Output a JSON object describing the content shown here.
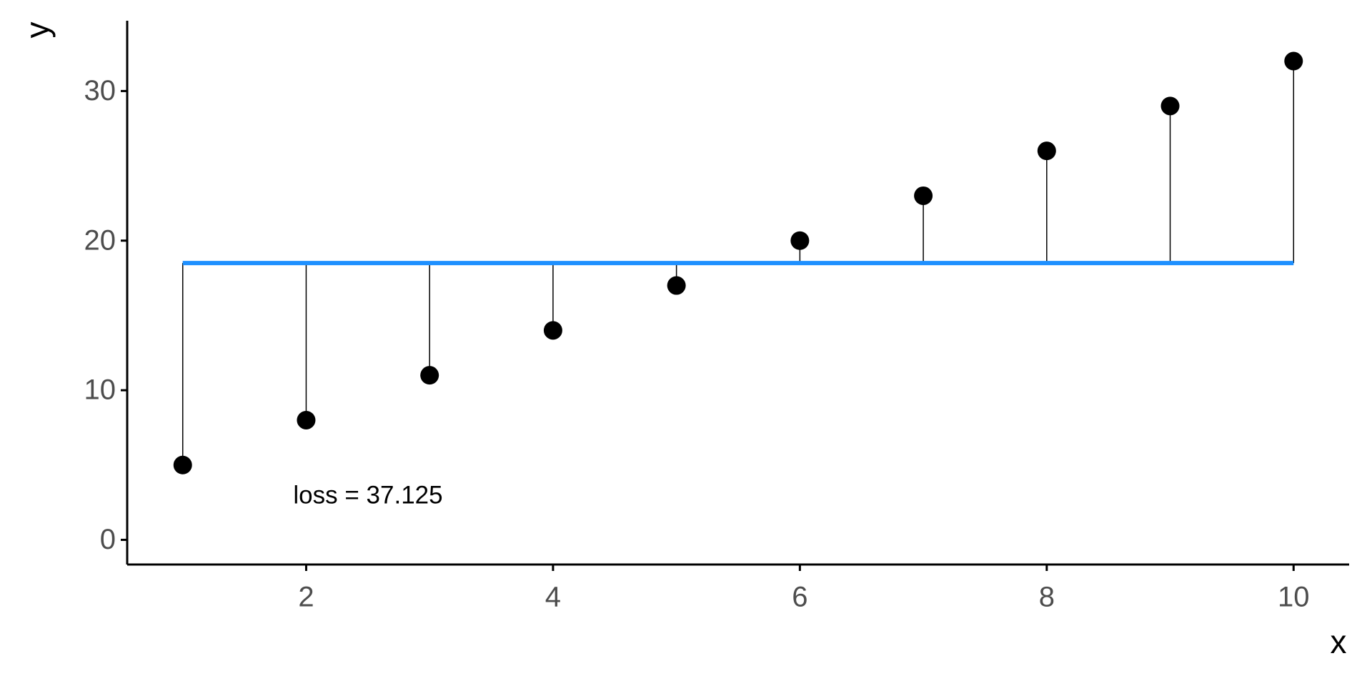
{
  "chart_data": {
    "type": "scatter",
    "x_label": "x",
    "y_label": "y",
    "annotation": "loss = 37.125",
    "x": [
      1,
      2,
      3,
      4,
      5,
      6,
      7,
      8,
      9,
      10
    ],
    "series": [
      {
        "color": "#000000",
        "values": [
          5,
          8,
          11,
          14,
          17,
          20,
          23,
          26,
          29,
          32
        ]
      }
    ],
    "fit": 18.5,
    "fit_color": "#1e90ff",
    "xlim": [
      0.55,
      10.45
    ],
    "xticks": [
      2,
      4,
      6,
      8,
      10
    ],
    "ylim": [
      -1.65,
      34.7
    ],
    "yticks": [
      0,
      10,
      20,
      30
    ],
    "grid": false
  }
}
